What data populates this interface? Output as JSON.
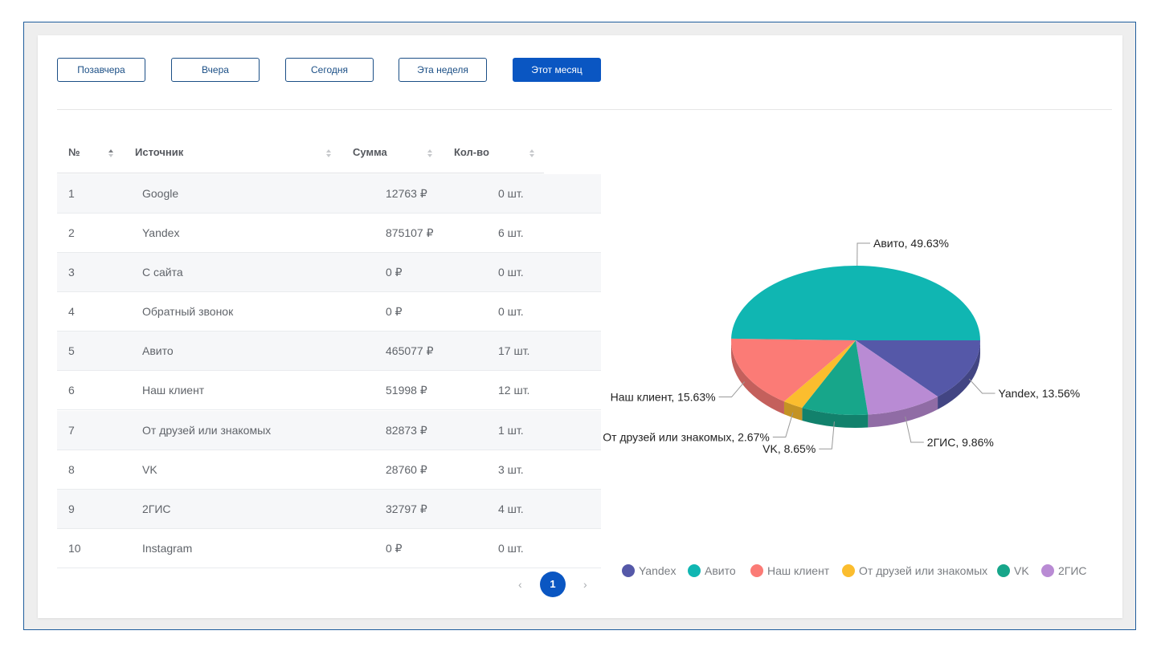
{
  "filters": {
    "buttons": [
      {
        "label": "Позавчера",
        "active": false
      },
      {
        "label": "Вчера",
        "active": false
      },
      {
        "label": "Сегодня",
        "active": false
      },
      {
        "label": "Эта неделя",
        "active": false
      },
      {
        "label": "Этот месяц",
        "active": true
      }
    ]
  },
  "table": {
    "columns": [
      "№",
      "Источник",
      "Сумма",
      "Кол-во"
    ],
    "rows": [
      {
        "n": "1",
        "source": "Google",
        "sum": "12763 ₽",
        "qty": "0 шт."
      },
      {
        "n": "2",
        "source": "Yandex",
        "sum": "875107 ₽",
        "qty": "6 шт."
      },
      {
        "n": "3",
        "source": "С сайта",
        "sum": "0 ₽",
        "qty": "0 шт."
      },
      {
        "n": "4",
        "source": "Обратный звонок",
        "sum": "0 ₽",
        "qty": "0 шт."
      },
      {
        "n": "5",
        "source": "Авито",
        "sum": "465077 ₽",
        "qty": "17 шт."
      },
      {
        "n": "6",
        "source": "Наш клиент",
        "sum": "51998 ₽",
        "qty": "12 шт."
      },
      {
        "n": "7",
        "source": "От друзей или знакомых",
        "sum": "82873 ₽",
        "qty": "1 шт."
      },
      {
        "n": "8",
        "source": "VK",
        "sum": "28760 ₽",
        "qty": "3 шт."
      },
      {
        "n": "9",
        "source": "2ГИС",
        "sum": "32797 ₽",
        "qty": "4 шт."
      },
      {
        "n": "10",
        "source": "Instagram",
        "sum": "0 ₽",
        "qty": "0 шт."
      }
    ]
  },
  "pagination": {
    "prev": "‹",
    "next": "›",
    "current": "1"
  },
  "chart_data": {
    "type": "pie",
    "slices": [
      {
        "name": "Yandex",
        "value": 13.56,
        "label": "Yandex, 13.56%",
        "color": "#5558a8"
      },
      {
        "name": "2ГИС",
        "value": 9.86,
        "label": "2ГИС, 9.86%",
        "color": "#b98bd4"
      },
      {
        "name": "VK",
        "value": 8.65,
        "label": "VK, 8.65%",
        "color": "#17a68a"
      },
      {
        "name": "От друзей или знакомых",
        "value": 2.67,
        "label": "От друзей или знакомых, 2.67%",
        "color": "#fbbd2e"
      },
      {
        "name": "Наш клиент",
        "value": 15.63,
        "label": "Наш клиент, 15.63%",
        "color": "#fb7b76"
      },
      {
        "name": "Авито",
        "value": 49.63,
        "label": "Авито, 49.63%",
        "color": "#10b6b2"
      }
    ],
    "legend": [
      "Yandex",
      "Авито",
      "Наш клиент",
      "От друзей или знакомых",
      "VK",
      "2ГИС"
    ],
    "legend_placement": "bottom",
    "three_d": true
  }
}
